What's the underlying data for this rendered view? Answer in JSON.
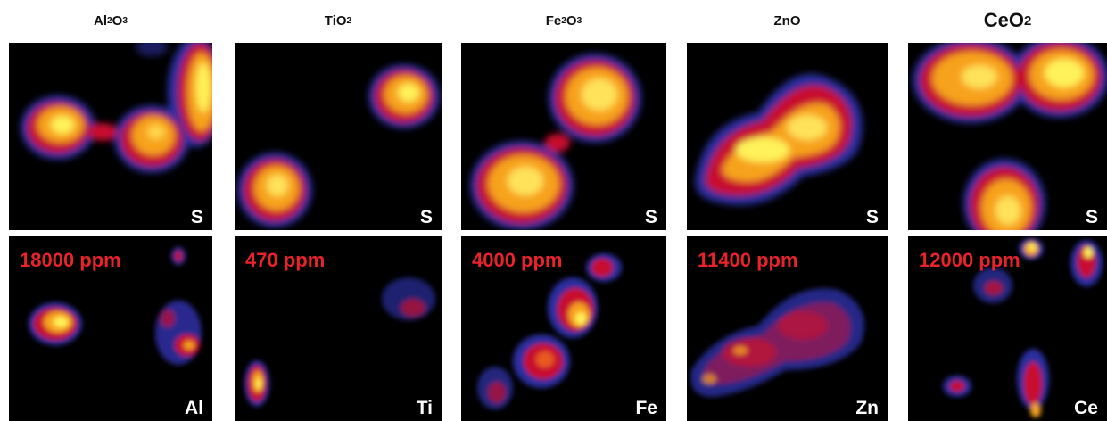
{
  "columns": [
    {
      "title": "Al",
      "sub": "2",
      "title2": "O",
      "sub2": "3",
      "top_label": "S",
      "bottom_label": "Al",
      "concentration": "18000 ppm"
    },
    {
      "title": "TiO",
      "sub": "2",
      "title2": "",
      "sub2": "",
      "top_label": "S",
      "bottom_label": "Ti",
      "concentration": "470 ppm"
    },
    {
      "title": "Fe",
      "sub": "2",
      "title2": "O",
      "sub2": "3",
      "top_label": "S",
      "bottom_label": "Fe",
      "concentration": "4000 ppm"
    },
    {
      "title": "ZnO",
      "sub": "",
      "title2": "",
      "sub2": "",
      "top_label": "S",
      "bottom_label": "Zn",
      "concentration": "11400 ppm"
    },
    {
      "title": "CeO",
      "sub": "2",
      "title2": "",
      "sub2": "",
      "top_label": "S",
      "bottom_label": "Ce",
      "concentration": "12000 ppm"
    }
  ],
  "colors": {
    "background": "#000000",
    "label": "#ffffff",
    "concentration": "#e8232a",
    "heat_low": "#2b2f9e",
    "heat_mid": "#c8102e",
    "heat_high": "#fff25a"
  }
}
